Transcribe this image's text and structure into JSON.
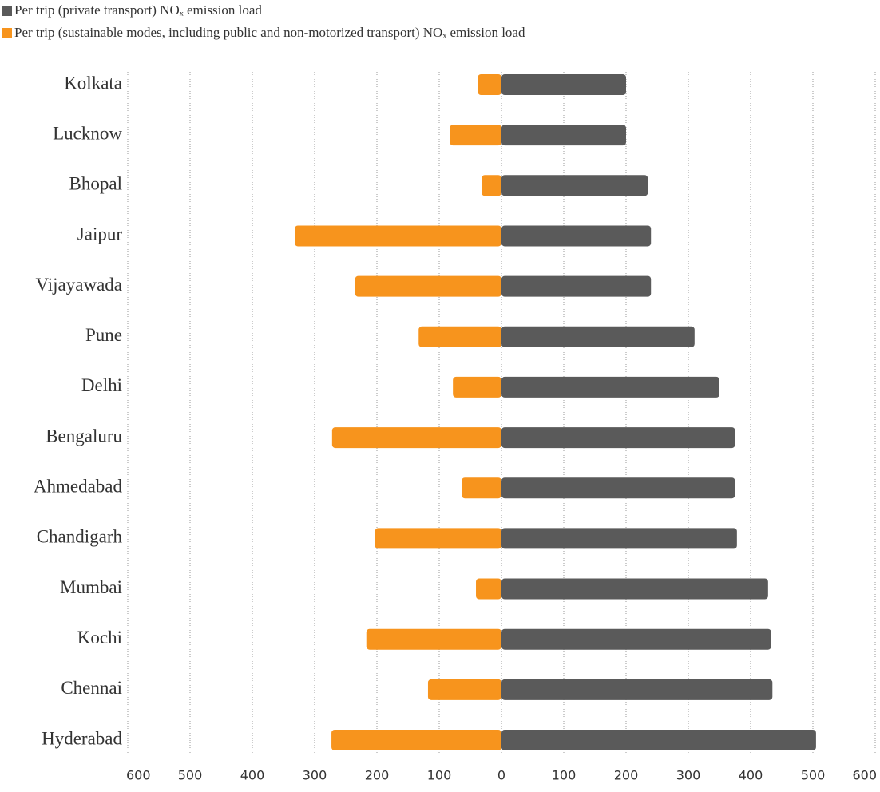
{
  "chart_data": {
    "type": "diverging-bar",
    "categories": [
      "Kolkata",
      "Lucknow",
      "Bhopal",
      "Jaipur",
      "Vijayawada",
      "Pune",
      "Delhi",
      "Bengaluru",
      "Ahmedabad",
      "Chandigarh",
      "Mumbai",
      "Kochi",
      "Chennai",
      "Hyderabad"
    ],
    "series": [
      {
        "name": "Per trip (private transport) NOₓ emission load",
        "color": "#5a5a5a",
        "values": [
          200,
          200,
          235,
          240,
          240,
          310,
          350,
          375,
          375,
          378,
          428,
          433,
          435,
          505
        ]
      },
      {
        "name": "Per trip (sustainable modes, including public and non-motorized transport) NOₓ emission load",
        "color": "#f7941d",
        "values": [
          -38,
          -83,
          -32,
          -332,
          -235,
          -133,
          -78,
          -272,
          -64,
          -203,
          -41,
          -217,
          -118,
          -273
        ]
      }
    ],
    "xlim": [
      -600,
      600
    ],
    "xticks": [
      {
        "value": -600,
        "label": "600"
      },
      {
        "value": -500,
        "label": "500"
      },
      {
        "value": -400,
        "label": "400"
      },
      {
        "value": -300,
        "label": "300"
      },
      {
        "value": -200,
        "label": "200"
      },
      {
        "value": -100,
        "label": "100"
      },
      0,
      100,
      200,
      300,
      400,
      500,
      600
    ],
    "grid": true
  }
}
